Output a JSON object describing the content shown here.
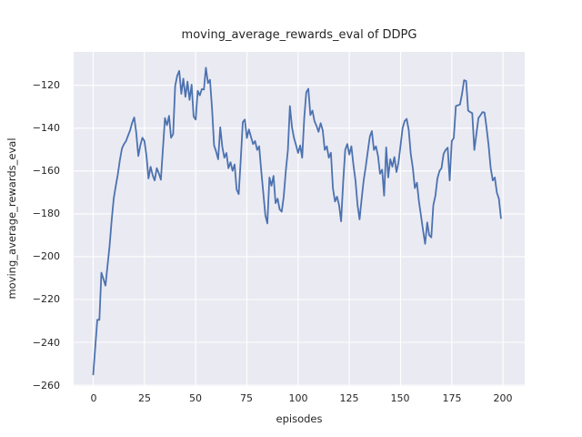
{
  "chart_data": {
    "type": "line",
    "title": "moving_average_rewards_eval of DDPG",
    "xlabel": "episodes",
    "ylabel": "moving_average_rewards_eval",
    "xlim": [
      -9.55,
      210.6
    ],
    "ylim": [
      -260.4,
      -104.4
    ],
    "xticks": [
      0,
      25,
      50,
      75,
      100,
      125,
      150,
      175,
      200
    ],
    "yticks": [
      -120,
      -140,
      -160,
      -180,
      -200,
      -220,
      -240,
      -260
    ],
    "grid": true,
    "legend_position": "none",
    "style": {
      "figure_background": "#ffffff",
      "plot_background": "#eaeaf2",
      "grid_color": "#ffffff",
      "line_color": "#4c72b0",
      "text_color": "#262626",
      "line_width": 1.8
    },
    "series": [
      {
        "name": "moving_average_rewards_eval",
        "x_start": 0,
        "x_step": 1,
        "values": [
          -255.0,
          -242.0,
          -229.5,
          -229.5,
          -207.5,
          -210.5,
          -213.5,
          -204.0,
          -195.0,
          -183.0,
          -173.0,
          -167.0,
          -161.5,
          -155.0,
          -149.5,
          -147.5,
          -146.0,
          -143.5,
          -141.0,
          -137.5,
          -135.0,
          -142.0,
          -153.0,
          -148.0,
          -144.5,
          -146.0,
          -153.0,
          -163.5,
          -158.0,
          -162.0,
          -164.4,
          -158.7,
          -161.0,
          -164.1,
          -150.0,
          -135.3,
          -138.6,
          -134.3,
          -144.5,
          -142.8,
          -120.4,
          -115.5,
          -113.3,
          -124.0,
          -116.9,
          -125.4,
          -118.3,
          -126.8,
          -119.7,
          -134.6,
          -136.0,
          -122.6,
          -124.7,
          -121.8,
          -122.0,
          -111.8,
          -119.0,
          -117.4,
          -131.0,
          -148.1,
          -151.0,
          -154.5,
          -139.6,
          -148.8,
          -153.8,
          -151.6,
          -158.7,
          -155.9,
          -159.9,
          -157.0,
          -168.6,
          -170.8,
          -155.0,
          -137.2,
          -136.0,
          -144.6,
          -140.6,
          -144.0,
          -147.4,
          -146.0,
          -150.2,
          -148.5,
          -160.0,
          -170.1,
          -180.7,
          -184.5,
          -163.0,
          -166.9,
          -162.3,
          -175.0,
          -172.9,
          -177.9,
          -179.0,
          -172.0,
          -160.0,
          -150.2,
          -129.7,
          -139.6,
          -144.6,
          -148.0,
          -151.6,
          -148.1,
          -153.8,
          -135.0,
          -123.3,
          -121.6,
          -133.9,
          -131.8,
          -136.7,
          -139.0,
          -141.7,
          -137.7,
          -141.0,
          -150.2,
          -148.5,
          -153.8,
          -151.5,
          -168.0,
          -174.3,
          -172.0,
          -176.0,
          -183.5,
          -165.0,
          -150.2,
          -147.4,
          -152.3,
          -148.5,
          -157.0,
          -164.4,
          -176.0,
          -182.6,
          -173.0,
          -164.4,
          -158.0,
          -151.0,
          -144.0,
          -141.4,
          -150.2,
          -148.5,
          -153.0,
          -161.3,
          -159.4,
          -171.5,
          -149.0,
          -163.0,
          -154.5,
          -158.0,
          -153.5,
          -160.5,
          -156.0,
          -148.0,
          -140.0,
          -136.7,
          -135.7,
          -141.0,
          -152.0,
          -158.7,
          -168.0,
          -165.5,
          -174.3,
          -181.0,
          -188.0,
          -194.0,
          -184.0,
          -190.0,
          -191.0,
          -176.0,
          -171.5,
          -163.5,
          -160.0,
          -158.7,
          -152.0,
          -150.2,
          -149.1,
          -164.4,
          -146.0,
          -144.6,
          -129.7,
          -129.3,
          -129.0,
          -124.0,
          -117.6,
          -118.0,
          -131.8,
          -132.5,
          -133.0,
          -150.2,
          -143.0,
          -135.3,
          -134.0,
          -132.5,
          -132.7,
          -140.0,
          -148.0,
          -158.7,
          -164.4,
          -163.0,
          -170.1,
          -172.9,
          -182.0
        ]
      }
    ]
  }
}
